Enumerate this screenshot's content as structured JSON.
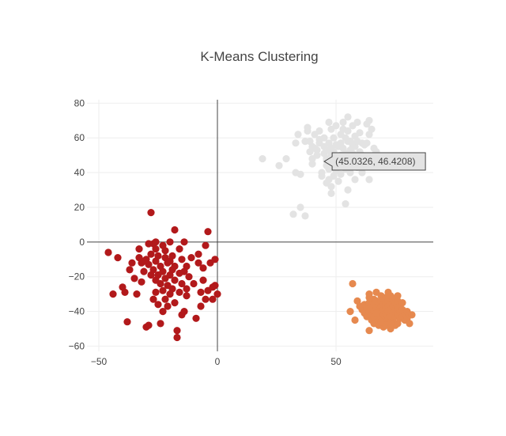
{
  "chart_data": {
    "type": "scatter",
    "title": "K-Means Clustering",
    "xlabel": "",
    "ylabel": "",
    "xlim": [
      -55,
      91
    ],
    "ylim": [
      -63,
      82
    ],
    "x_ticks": [
      -50,
      0,
      50
    ],
    "x_tick_labels": [
      "−50",
      "0",
      "50"
    ],
    "y_ticks": [
      -60,
      -40,
      -20,
      0,
      20,
      40,
      60,
      80
    ],
    "y_tick_labels": [
      "−60",
      "−40",
      "−20",
      "0",
      "20",
      "40",
      "60",
      "80"
    ],
    "grid": true,
    "zero_lines": true,
    "legend": "none",
    "colors": {
      "grid": "#eeeeee",
      "zeroline": "#444444",
      "text": "#444444",
      "hover_bg": "#e3e3e3",
      "hover_border": "#444444"
    },
    "hover": {
      "x": 45.0326,
      "y": 46.4208,
      "label": "(45.0326, 46.4208)"
    },
    "series": [
      {
        "color": "#e3e3e3",
        "points": [
          [
            19,
            48
          ],
          [
            26,
            44
          ],
          [
            29,
            48
          ],
          [
            33,
            57
          ],
          [
            33,
            40
          ],
          [
            35,
            39
          ],
          [
            35,
            20
          ],
          [
            32,
            16
          ],
          [
            37,
            15
          ],
          [
            34,
            62
          ],
          [
            37,
            58
          ],
          [
            38,
            64
          ],
          [
            38,
            66
          ],
          [
            39,
            58
          ],
          [
            39,
            52
          ],
          [
            40,
            55
          ],
          [
            40,
            48
          ],
          [
            40,
            45
          ],
          [
            41,
            62
          ],
          [
            41,
            54
          ],
          [
            42,
            53
          ],
          [
            42,
            50
          ],
          [
            43,
            59
          ],
          [
            43,
            64
          ],
          [
            43,
            57
          ],
          [
            44,
            40
          ],
          [
            44,
            38
          ],
          [
            45,
            60
          ],
          [
            45,
            55
          ],
          [
            45,
            51
          ],
          [
            46,
            47
          ],
          [
            46,
            44
          ],
          [
            46,
            34
          ],
          [
            46,
            48
          ],
          [
            47,
            69
          ],
          [
            47,
            57
          ],
          [
            47,
            53
          ],
          [
            47,
            42
          ],
          [
            47,
            36
          ],
          [
            48,
            65
          ],
          [
            48,
            54
          ],
          [
            48,
            50
          ],
          [
            48,
            28
          ],
          [
            48,
            32
          ],
          [
            49,
            60
          ],
          [
            49,
            52
          ],
          [
            49,
            46
          ],
          [
            49,
            38
          ],
          [
            50,
            67
          ],
          [
            50,
            56
          ],
          [
            50,
            48
          ],
          [
            50,
            41
          ],
          [
            51,
            55
          ],
          [
            51,
            45
          ],
          [
            51,
            35
          ],
          [
            52,
            62
          ],
          [
            52,
            57
          ],
          [
            52,
            50
          ],
          [
            52,
            47
          ],
          [
            52,
            39
          ],
          [
            53,
            69
          ],
          [
            53,
            65
          ],
          [
            53,
            54
          ],
          [
            53,
            44
          ],
          [
            54,
            60
          ],
          [
            54,
            51
          ],
          [
            54,
            48
          ],
          [
            54,
            42
          ],
          [
            54,
            22
          ],
          [
            55,
            72
          ],
          [
            55,
            64
          ],
          [
            55,
            30
          ],
          [
            55,
            58
          ],
          [
            56,
            58
          ],
          [
            56,
            53
          ],
          [
            56,
            47
          ],
          [
            56,
            40
          ],
          [
            57,
            67
          ],
          [
            57,
            56
          ],
          [
            57,
            51
          ],
          [
            57,
            44
          ],
          [
            58,
            61
          ],
          [
            58,
            55
          ],
          [
            58,
            46
          ],
          [
            58,
            36
          ],
          [
            59,
            69
          ],
          [
            59,
            58
          ],
          [
            59,
            49
          ],
          [
            59,
            43
          ],
          [
            60,
            63
          ],
          [
            60,
            52
          ],
          [
            60,
            46
          ],
          [
            61,
            57
          ],
          [
            61,
            50
          ],
          [
            61,
            40
          ],
          [
            62,
            56
          ],
          [
            62,
            48
          ],
          [
            63,
            68
          ],
          [
            63,
            57
          ],
          [
            63,
            44
          ],
          [
            64,
            70
          ],
          [
            64,
            62
          ],
          [
            64,
            48
          ],
          [
            64,
            36
          ],
          [
            65,
            65
          ],
          [
            66,
            54
          ],
          [
            66,
            50
          ],
          [
            67,
            52
          ],
          [
            68,
            48
          ],
          [
            70,
            46
          ]
        ]
      },
      {
        "color": "#e6894f",
        "points": [
          [
            57,
            -24
          ],
          [
            56,
            -40
          ],
          [
            58,
            -45
          ],
          [
            59,
            -34
          ],
          [
            60,
            -37
          ],
          [
            61,
            -39
          ],
          [
            62,
            -41
          ],
          [
            62,
            -36
          ],
          [
            63,
            -43
          ],
          [
            63,
            -38
          ],
          [
            64,
            -30
          ],
          [
            64,
            -35
          ],
          [
            64,
            -40
          ],
          [
            64,
            -51
          ],
          [
            65,
            -45
          ],
          [
            65,
            -38
          ],
          [
            65,
            -42
          ],
          [
            66,
            -33
          ],
          [
            66,
            -36
          ],
          [
            66,
            -40
          ],
          [
            66,
            -47
          ],
          [
            67,
            -29
          ],
          [
            67,
            -34
          ],
          [
            67,
            -38
          ],
          [
            67,
            -44
          ],
          [
            68,
            -36
          ],
          [
            68,
            -41
          ],
          [
            68,
            -48
          ],
          [
            69,
            -31
          ],
          [
            69,
            -34
          ],
          [
            69,
            -37
          ],
          [
            69,
            -40
          ],
          [
            69,
            -43
          ],
          [
            70,
            -33
          ],
          [
            70,
            -36
          ],
          [
            70,
            -39
          ],
          [
            70,
            -42
          ],
          [
            70,
            -47
          ],
          [
            71,
            -32
          ],
          [
            71,
            -35
          ],
          [
            71,
            -38
          ],
          [
            71,
            -41
          ],
          [
            71,
            -45
          ],
          [
            72,
            -29
          ],
          [
            72,
            -34
          ],
          [
            72,
            -37
          ],
          [
            72,
            -40
          ],
          [
            72,
            -44
          ],
          [
            72,
            -48
          ],
          [
            73,
            -31
          ],
          [
            73,
            -36
          ],
          [
            73,
            -39
          ],
          [
            73,
            -43
          ],
          [
            74,
            -33
          ],
          [
            74,
            -37
          ],
          [
            74,
            -41
          ],
          [
            74,
            -46
          ],
          [
            75,
            -35
          ],
          [
            75,
            -39
          ],
          [
            75,
            -43
          ],
          [
            75,
            -48
          ],
          [
            76,
            -34
          ],
          [
            76,
            -38
          ],
          [
            76,
            -42
          ],
          [
            76,
            -47
          ],
          [
            77,
            -36
          ],
          [
            77,
            -40
          ],
          [
            77,
            -44
          ],
          [
            78,
            -35
          ],
          [
            78,
            -39
          ],
          [
            78,
            -43
          ],
          [
            79,
            -41
          ],
          [
            79,
            -45
          ],
          [
            80,
            -40
          ],
          [
            80,
            -44
          ],
          [
            81,
            -42
          ],
          [
            81,
            -47
          ],
          [
            82,
            -42
          ],
          [
            70,
            -49
          ],
          [
            73,
            -50
          ],
          [
            68,
            -45
          ],
          [
            66,
            -43
          ],
          [
            64,
            -32
          ],
          [
            69,
            -46
          ],
          [
            71,
            -48
          ],
          [
            76,
            -31
          ],
          [
            73,
            -47
          ],
          [
            67,
            -41
          ]
        ]
      },
      {
        "color": "#b2191b",
        "points": [
          [
            -46,
            -6
          ],
          [
            -44,
            -30
          ],
          [
            -42,
            -9
          ],
          [
            -40,
            -26
          ],
          [
            -39,
            -29
          ],
          [
            -38,
            -46
          ],
          [
            -37,
            -16
          ],
          [
            -36,
            -12
          ],
          [
            -35,
            -21
          ],
          [
            -34,
            -30
          ],
          [
            -33,
            -9
          ],
          [
            -33,
            -4
          ],
          [
            -32,
            -12
          ],
          [
            -32,
            -23
          ],
          [
            -31,
            -17
          ],
          [
            -30,
            -49
          ],
          [
            -30,
            -10
          ],
          [
            -29,
            -13
          ],
          [
            -29,
            -48
          ],
          [
            -28,
            -7
          ],
          [
            -28,
            -19
          ],
          [
            -28,
            17
          ],
          [
            -27,
            -1
          ],
          [
            -27,
            -16
          ],
          [
            -27,
            -33
          ],
          [
            -26,
            -11
          ],
          [
            -26,
            -22
          ],
          [
            -26,
            -29
          ],
          [
            -26,
            0
          ],
          [
            -25,
            -8
          ],
          [
            -25,
            -19
          ],
          [
            -25,
            -36
          ],
          [
            -24,
            -14
          ],
          [
            -24,
            -24
          ],
          [
            -24,
            -47
          ],
          [
            -23,
            -2
          ],
          [
            -23,
            -17
          ],
          [
            -23,
            -28
          ],
          [
            -23,
            -40
          ],
          [
            -22,
            -9
          ],
          [
            -22,
            -21
          ],
          [
            -22,
            -33
          ],
          [
            -21,
            -12
          ],
          [
            -21,
            -25
          ],
          [
            -21,
            -37
          ],
          [
            -20,
            0
          ],
          [
            -20,
            -19
          ],
          [
            -20,
            -30
          ],
          [
            -19,
            -8
          ],
          [
            -19,
            -16
          ],
          [
            -19,
            -27
          ],
          [
            -18,
            7
          ],
          [
            -18,
            -14
          ],
          [
            -18,
            -22
          ],
          [
            -18,
            -35
          ],
          [
            -17,
            -51
          ],
          [
            -17,
            -55
          ],
          [
            -16,
            -4
          ],
          [
            -16,
            -18
          ],
          [
            -16,
            -29
          ],
          [
            -15,
            -10
          ],
          [
            -15,
            -24
          ],
          [
            -15,
            -42
          ],
          [
            -14,
            0
          ],
          [
            -14,
            -17
          ],
          [
            -14,
            -40
          ],
          [
            -13,
            -14
          ],
          [
            -13,
            -27
          ],
          [
            -13,
            -31
          ],
          [
            -12,
            -20
          ],
          [
            -11,
            -9
          ],
          [
            -10,
            -24
          ],
          [
            -9,
            -44
          ],
          [
            -8,
            -12
          ],
          [
            -8,
            -7
          ],
          [
            -7,
            -29
          ],
          [
            -7,
            -37
          ],
          [
            -6,
            -22
          ],
          [
            -6,
            -15
          ],
          [
            -5,
            -2
          ],
          [
            -5,
            -33
          ],
          [
            -4,
            6
          ],
          [
            -4,
            -28
          ],
          [
            -3,
            -12
          ],
          [
            -2,
            -26
          ],
          [
            -2,
            -33
          ],
          [
            -1,
            -10
          ],
          [
            -1,
            -25
          ],
          [
            0,
            -30
          ],
          [
            -22,
            -5
          ],
          [
            -29,
            -1
          ],
          [
            -26,
            -4
          ],
          [
            -31,
            -11
          ],
          [
            -20,
            -11
          ]
        ]
      }
    ]
  }
}
